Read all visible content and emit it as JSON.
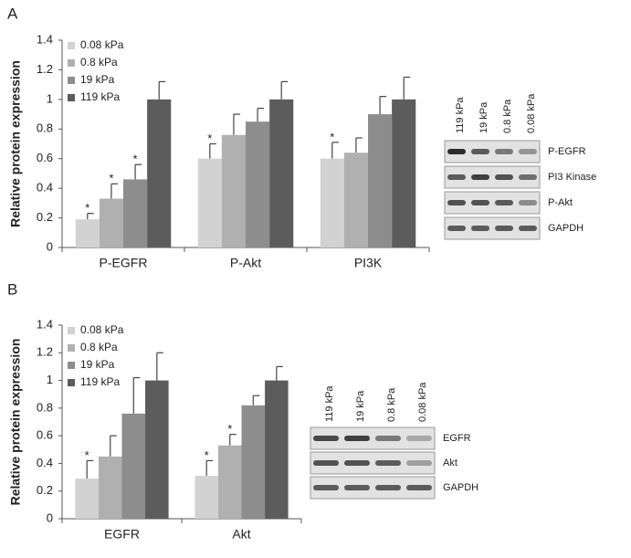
{
  "panel_labels": [
    "A",
    "B"
  ],
  "chart_data": [
    {
      "type": "bar",
      "y_label": "Relative protein expression",
      "categories": [
        "P-EGFR",
        "P-Akt",
        "PI3K"
      ],
      "ylim": [
        0,
        1.4
      ],
      "yticks": [
        0,
        0.2,
        0.4,
        0.6,
        0.8,
        1,
        1.2,
        1.4
      ],
      "legend": "upper left",
      "series": [
        {
          "name": "0.08 kPa",
          "color": "#d2d2d2",
          "values": [
            0.19,
            0.6,
            0.6
          ],
          "errors": [
            0.04,
            0.1,
            0.11
          ],
          "markers": [
            "*",
            "*",
            "*"
          ]
        },
        {
          "name": "0.8 kPa",
          "color": "#b0b0b0",
          "values": [
            0.33,
            0.76,
            0.64
          ],
          "errors": [
            0.1,
            0.14,
            0.1
          ],
          "markers": [
            "*",
            null,
            null
          ]
        },
        {
          "name": "19 kPa",
          "color": "#8d8d8d",
          "values": [
            0.46,
            0.85,
            0.9
          ],
          "errors": [
            0.1,
            0.09,
            0.12
          ],
          "markers": [
            "*",
            null,
            null
          ]
        },
        {
          "name": "119 kPa",
          "color": "#5c5c5c",
          "values": [
            1,
            1,
            1
          ],
          "errors": [
            0.12,
            0.12,
            0.15
          ],
          "markers": [
            null,
            null,
            null
          ]
        }
      ]
    },
    {
      "type": "bar",
      "y_label": "Relative protein expression",
      "categories": [
        "EGFR",
        "Akt"
      ],
      "ylim": [
        0,
        1.4
      ],
      "yticks": [
        0,
        0.2,
        0.4,
        0.6,
        0.8,
        1,
        1.2,
        1.4
      ],
      "legend": "upper left",
      "series": [
        {
          "name": "0.08 kPa",
          "color": "#d2d2d2",
          "values": [
            0.29,
            0.31
          ],
          "errors": [
            0.13,
            0.11
          ],
          "markers": [
            "*",
            "*"
          ]
        },
        {
          "name": "0.8 kPa",
          "color": "#b0b0b0",
          "values": [
            0.45,
            0.53
          ],
          "errors": [
            0.15,
            0.08
          ],
          "markers": [
            null,
            "*"
          ]
        },
        {
          "name": "19 kPa",
          "color": "#8d8d8d",
          "values": [
            0.76,
            0.82
          ],
          "errors": [
            0.26,
            0.07
          ],
          "markers": [
            null,
            null
          ]
        },
        {
          "name": "119 kPa",
          "color": "#5c5c5c",
          "values": [
            1,
            1
          ],
          "errors": [
            0.2,
            0.1
          ],
          "markers": [
            null,
            null
          ]
        }
      ]
    }
  ],
  "blots": [
    {
      "lanes": [
        "119 kPa",
        "19 kPa",
        "0.8 kPa",
        "0.08 kPa"
      ],
      "bands": [
        "P-EGFR",
        "PI3 Kinase",
        "P-Akt",
        "GAPDH"
      ]
    },
    {
      "lanes": [
        "119 kPa",
        "19 kPa",
        "0.8 kPa",
        "0.08 kPa"
      ],
      "bands": [
        "EGFR",
        "Akt",
        "GAPDH"
      ]
    }
  ]
}
